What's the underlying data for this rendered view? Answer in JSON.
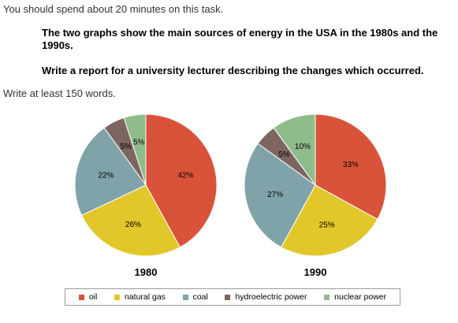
{
  "task": {
    "intro": "You should spend about 20 minutes on this task.",
    "prompt_line1": "The two graphs show the main sources of energy in the USA in the 1980s and the 1990s.",
    "prompt_line2": "Write a report for a university lecturer describing the changes which occurred.",
    "word_count": "Write at least 150 words."
  },
  "chart_data": [
    {
      "type": "pie",
      "title": "1980",
      "categories": [
        "oil",
        "natural gas",
        "coal",
        "hydroelectric power",
        "nuclear power"
      ],
      "values": [
        42,
        26,
        22,
        5,
        5
      ],
      "labels": [
        "42%",
        "26%",
        "22%",
        "5%",
        "5%"
      ],
      "colors": [
        "#D9533A",
        "#E2C72A",
        "#7FA3A8",
        "#7D6660",
        "#8FBC8B"
      ]
    },
    {
      "type": "pie",
      "title": "1990",
      "categories": [
        "oil",
        "natural gas",
        "coal",
        "hydroelectric power",
        "nuclear power"
      ],
      "values": [
        33,
        25,
        27,
        5,
        10
      ],
      "labels": [
        "33%",
        "25%",
        "27%",
        "5%",
        "10%"
      ],
      "colors": [
        "#D9533A",
        "#E2C72A",
        "#7FA3A8",
        "#7D6660",
        "#8FBC8B"
      ]
    }
  ],
  "legend": {
    "items": [
      {
        "label": "oil",
        "color": "#D9533A"
      },
      {
        "label": "natural gas",
        "color": "#E2C72A"
      },
      {
        "label": "coal",
        "color": "#7FA3A8"
      },
      {
        "label": "hydroelectric power",
        "color": "#7D6660"
      },
      {
        "label": "nuclear power",
        "color": "#8FBC8B"
      }
    ]
  }
}
